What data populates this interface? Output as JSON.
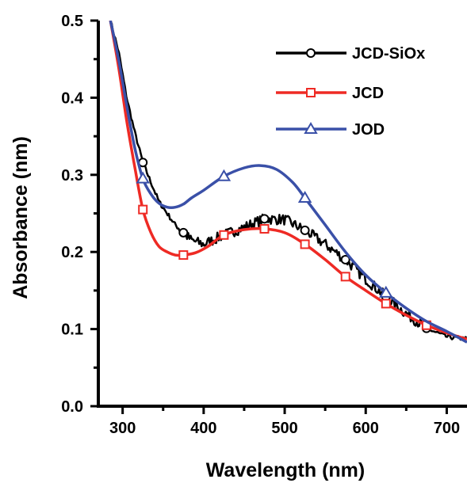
{
  "chart_data": {
    "type": "line",
    "title": "",
    "xlabel": "Wavelength (nm)",
    "ylabel": "Absorbance (nm)",
    "xlim": [
      270,
      725
    ],
    "ylim": [
      0.0,
      0.5
    ],
    "x_ticks": [
      300,
      400,
      500,
      600,
      700
    ],
    "x_tick_labels": [
      "300",
      "400",
      "500",
      "600",
      "700"
    ],
    "y_ticks": [
      0.0,
      0.1,
      0.2,
      0.3,
      0.4,
      0.5
    ],
    "y_tick_labels": [
      "0.0",
      "0.1",
      "0.2",
      "0.3",
      "0.4",
      "0.5"
    ],
    "grid": false,
    "legend_position": "top-right",
    "series": [
      {
        "name": "JCD-SiOx",
        "color": "#000000",
        "marker": "circle",
        "noisy": true,
        "x": [
          285,
          295,
          305,
          315,
          325,
          335,
          345,
          355,
          365,
          375,
          385,
          400,
          425,
          450,
          475,
          500,
          525,
          550,
          575,
          600,
          625,
          650,
          675,
          700,
          725
        ],
        "y": [
          0.5,
          0.46,
          0.4,
          0.355,
          0.316,
          0.29,
          0.265,
          0.25,
          0.235,
          0.225,
          0.215,
          0.21,
          0.222,
          0.232,
          0.243,
          0.242,
          0.228,
          0.21,
          0.19,
          0.165,
          0.142,
          0.12,
          0.101,
          0.09,
          0.087
        ],
        "marker_x": [
          325,
          375,
          475,
          525,
          575,
          625,
          675
        ],
        "marker_y": [
          0.316,
          0.225,
          0.243,
          0.228,
          0.19,
          0.142,
          0.101
        ]
      },
      {
        "name": "JCD",
        "color": "#ee2a24",
        "marker": "square",
        "noisy": false,
        "x": [
          285,
          295,
          305,
          315,
          325,
          335,
          345,
          355,
          365,
          375,
          390,
          405,
          425,
          450,
          475,
          500,
          525,
          550,
          575,
          600,
          625,
          650,
          675,
          700,
          725
        ],
        "y": [
          0.5,
          0.44,
          0.37,
          0.31,
          0.255,
          0.225,
          0.207,
          0.2,
          0.196,
          0.196,
          0.199,
          0.207,
          0.222,
          0.229,
          0.23,
          0.225,
          0.21,
          0.19,
          0.168,
          0.15,
          0.133,
          0.118,
          0.105,
          0.095,
          0.087
        ],
        "marker_x": [
          325,
          375,
          425,
          475,
          525,
          575,
          625,
          675
        ],
        "marker_y": [
          0.255,
          0.196,
          0.222,
          0.23,
          0.21,
          0.168,
          0.133,
          0.105
        ]
      },
      {
        "name": "JOD",
        "color": "#3a50a8",
        "marker": "triangle",
        "noisy": false,
        "x": [
          285,
          295,
          305,
          315,
          325,
          335,
          345,
          355,
          365,
          375,
          385,
          400,
          425,
          450,
          470,
          490,
          510,
          525,
          550,
          575,
          600,
          625,
          650,
          675,
          700,
          725
        ],
        "y": [
          0.5,
          0.45,
          0.39,
          0.335,
          0.295,
          0.275,
          0.263,
          0.258,
          0.258,
          0.262,
          0.27,
          0.28,
          0.298,
          0.309,
          0.312,
          0.307,
          0.29,
          0.27,
          0.235,
          0.2,
          0.17,
          0.147,
          0.127,
          0.11,
          0.097,
          0.083
        ],
        "marker_x": [
          325,
          425,
          525,
          625
        ],
        "marker_y": [
          0.295,
          0.298,
          0.27,
          0.147
        ]
      }
    ]
  }
}
